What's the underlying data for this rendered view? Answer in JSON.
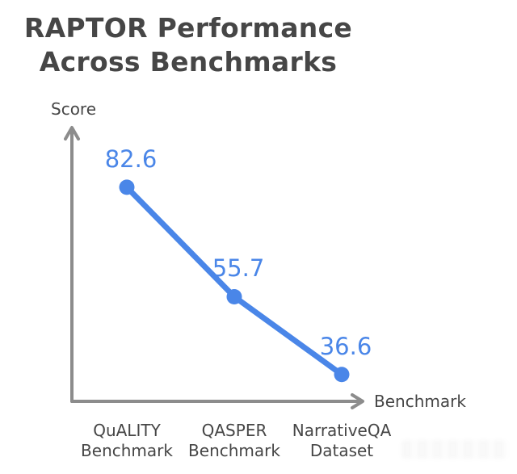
{
  "title": "RAPTOR Performance Across Benchmarks",
  "colors": {
    "accent_blue": "#4a86e8",
    "axis_gray": "#8c8c8c",
    "text_dark": "#464646",
    "background": "#ffffff"
  },
  "chart_data": {
    "type": "line",
    "title": "RAPTOR Performance Across Benchmarks",
    "xlabel": "Benchmark",
    "ylabel": "Score",
    "categories": [
      "QuALITY Benchmark",
      "QASPER Benchmark",
      "NarrativeQA Dataset"
    ],
    "categories_display": [
      "QuALITY\nBenchmark",
      "QASPER\nBenchmark",
      "NarrativeQA\nDataset"
    ],
    "series": [
      {
        "name": "RAPTOR",
        "values": [
          82.6,
          55.7,
          36.6
        ]
      }
    ],
    "data_labels": [
      "82.6",
      "55.7",
      "36.6"
    ],
    "ylim": [
      30,
      90
    ],
    "grid": false,
    "legend": "none",
    "style": "hand-drawn single blue line with point markers and value labels above points"
  }
}
